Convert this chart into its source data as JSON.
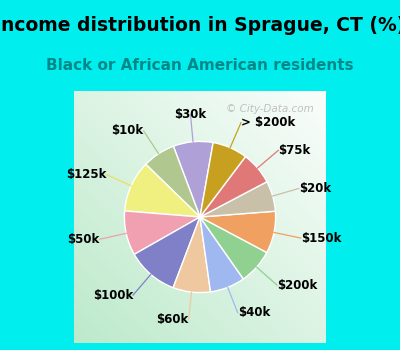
{
  "title": "Income distribution in Sprague, CT (%)",
  "subtitle": "Black or African American residents",
  "watermark": "© City-Data.com",
  "background_fig": "#00EEEE",
  "background_chart_color": "#d0eed8",
  "labels": [
    "$30k",
    "$10k",
    "$125k",
    "$50k",
    "$100k",
    "$60k",
    "$40k",
    "$200k",
    "$150k",
    "$20k",
    "$75k",
    "> $200k"
  ],
  "values": [
    8.5,
    7.0,
    11.0,
    9.5,
    11.0,
    8.0,
    7.5,
    7.5,
    9.0,
    6.5,
    7.0,
    7.5
  ],
  "colors": [
    "#b0a0d8",
    "#b0c890",
    "#f0f080",
    "#f0a0b0",
    "#8080c8",
    "#f0c8a0",
    "#a0b8f0",
    "#90d090",
    "#f0a060",
    "#c8c0a8",
    "#e07878",
    "#c8a020"
  ],
  "label_colors": [
    "#b0a0d8",
    "#b0c890",
    "#e8e060",
    "#f0a0b0",
    "#8080c8",
    "#f0c8a0",
    "#a0b8f0",
    "#90d090",
    "#f0a060",
    "#c8c0a8",
    "#e07878",
    "#c8a020"
  ],
  "figsize": [
    4.0,
    3.5
  ],
  "dpi": 100,
  "title_fontsize": 13.5,
  "subtitle_fontsize": 11,
  "label_fontsize": 8.5,
  "startangle": 80
}
